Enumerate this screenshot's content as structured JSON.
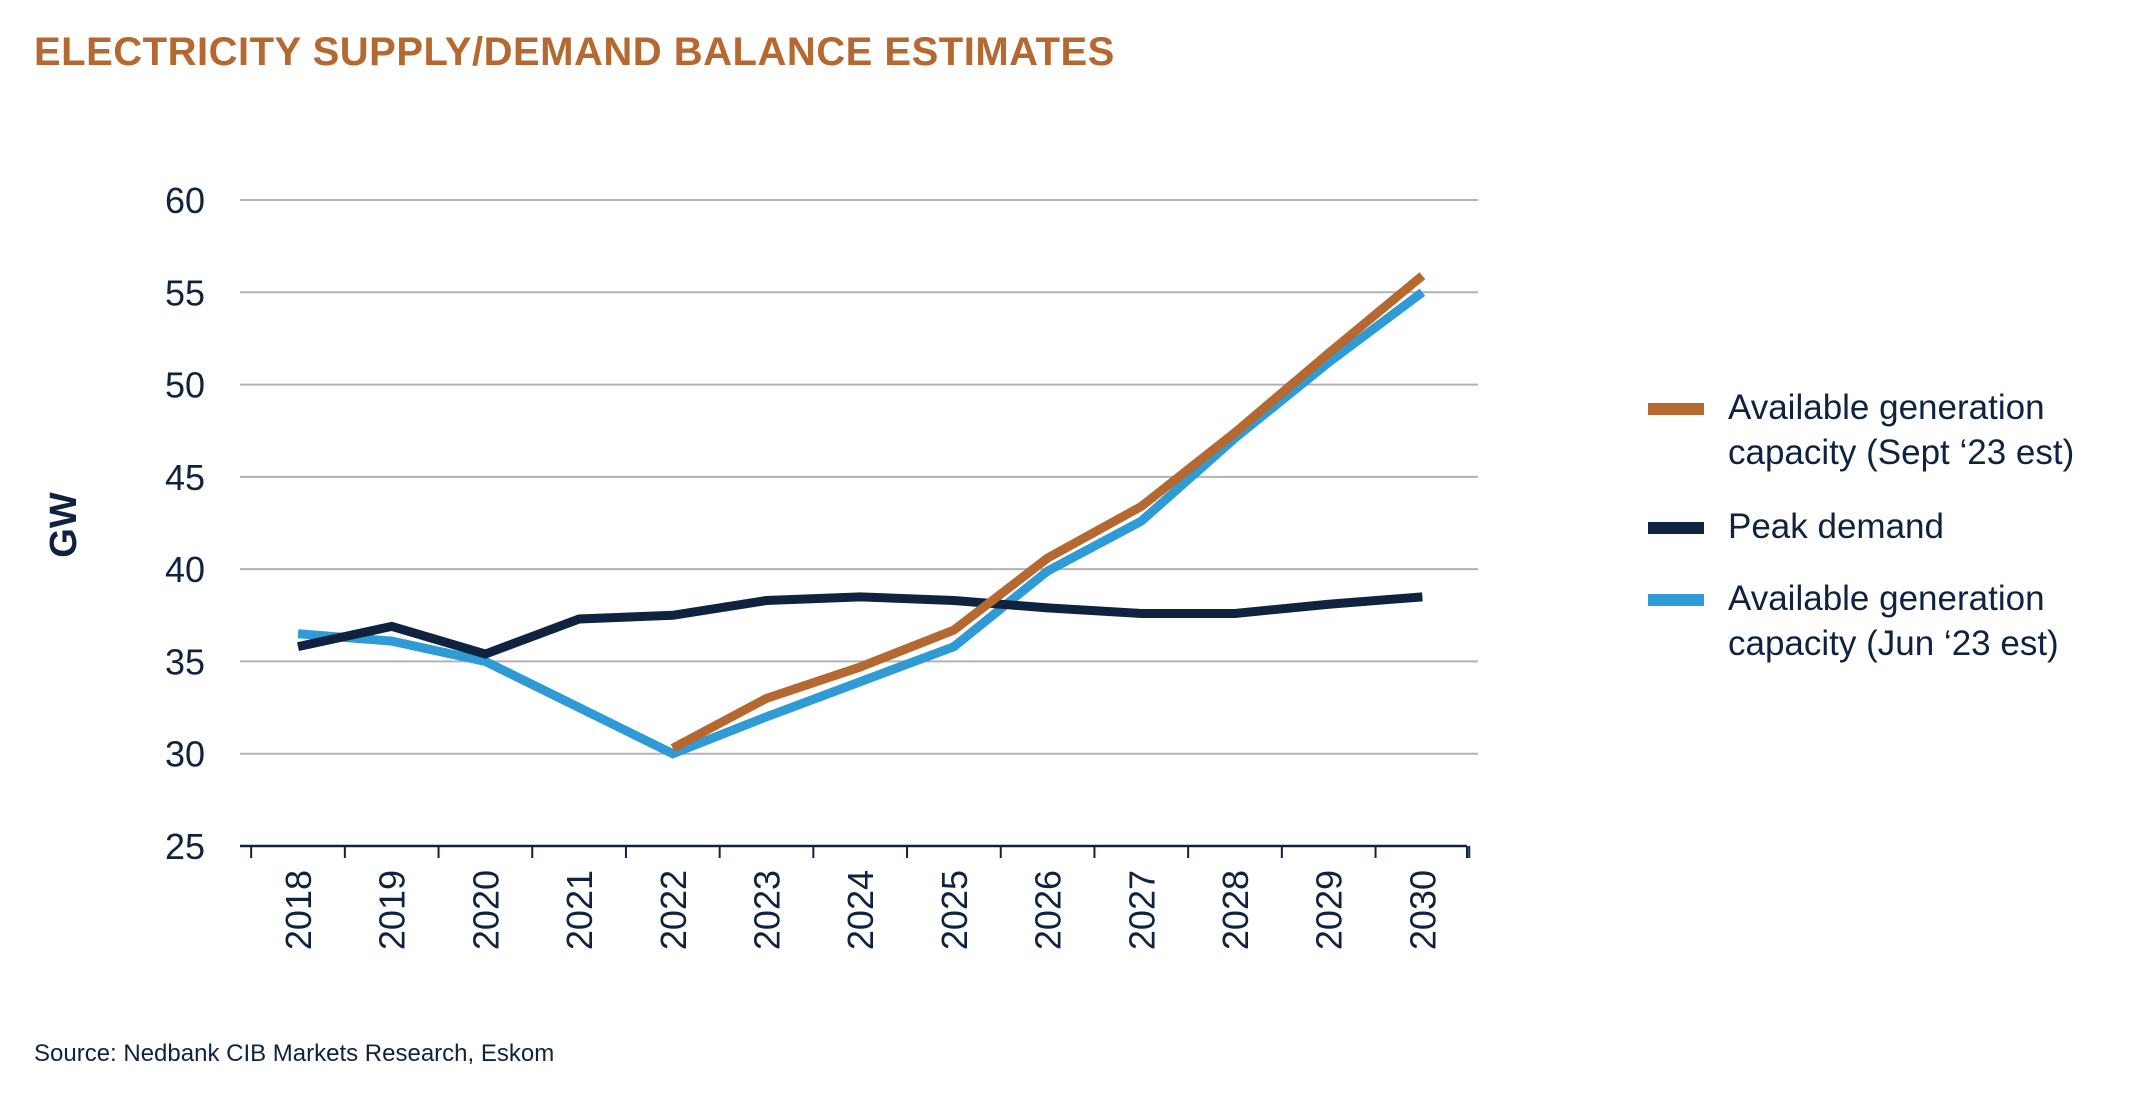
{
  "title": "ELECTRICITY SUPPLY/DEMAND BALANCE ESTIMATES",
  "source": "Source:  Nedbank CIB Markets Research, Eskom",
  "chart_data": {
    "type": "line",
    "title": "ELECTRICITY SUPPLY/DEMAND BALANCE ESTIMATES",
    "xlabel": "",
    "ylabel": "GW",
    "ylim": [
      25,
      60
    ],
    "yticks": [
      "25",
      "30",
      "35",
      "40",
      "45",
      "50",
      "55",
      "60"
    ],
    "categories": [
      "2018",
      "2019",
      "2020",
      "2021",
      "2022",
      "2023",
      "2024",
      "2025",
      "2026",
      "2027",
      "2028",
      "2029",
      "2030"
    ],
    "grid": "horizontal",
    "legend_position": "right",
    "series": [
      {
        "name": "Available generation capacity (Sept ‘23 est)",
        "color": "#b5682f",
        "values": [
          null,
          null,
          null,
          null,
          30.3,
          33.0,
          34.7,
          36.7,
          40.6,
          43.4,
          47.4,
          51.7,
          55.9
        ]
      },
      {
        "name": "Peak demand",
        "color": "#0f2341",
        "values": [
          35.8,
          36.9,
          35.4,
          37.3,
          37.5,
          38.3,
          38.5,
          38.3,
          37.9,
          37.6,
          37.6,
          38.1,
          38.5
        ]
      },
      {
        "name": "Available generation capacity (Jun ‘23 est)",
        "color": "#2e9bd6",
        "values": [
          36.5,
          36.1,
          35.0,
          32.5,
          30.0,
          32.0,
          33.9,
          35.8,
          39.9,
          42.6,
          47.1,
          51.2,
          55.0
        ]
      }
    ]
  }
}
